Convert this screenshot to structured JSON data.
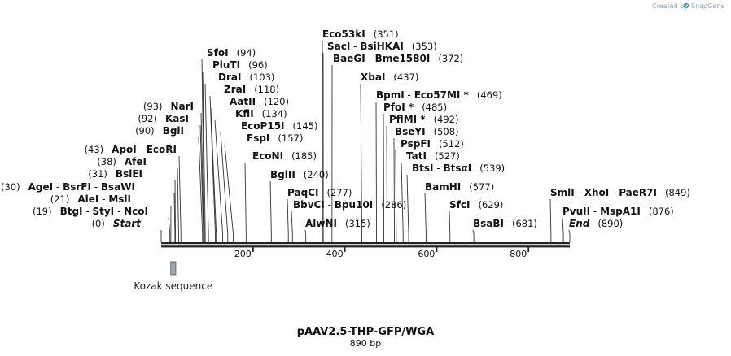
{
  "credit": {
    "prefix": "Created by",
    "brand": "SnapGene"
  },
  "map": {
    "name": "pAAV2.5-THP-GFP/WGA",
    "size_label": "890 bp",
    "length_bp": 890,
    "ticks": [
      {
        "bp": 200,
        "label": "200"
      },
      {
        "bp": 400,
        "label": "400"
      },
      {
        "bp": 600,
        "label": "600"
      },
      {
        "bp": 800,
        "label": "800"
      }
    ],
    "feature": {
      "label": "Kozak sequence",
      "start": 19,
      "end": 30,
      "color": "#a4a8ac"
    },
    "colors": {
      "backbone": "#222222",
      "line": "#333333",
      "accent": "#4a8cc9"
    }
  },
  "chart_data": {
    "type": "restriction-map",
    "title": "pAAV2.5-THP-GFP/WGA",
    "subtitle": "890 bp",
    "sites": [
      {
        "names": [
          "Start"
        ],
        "pos": 0,
        "pos_label": "(0)",
        "side": "left",
        "italic": true
      },
      {
        "names": [
          "BtgI",
          "StyI",
          "NcoI"
        ],
        "pos": 19,
        "pos_label": "(19)",
        "side": "left"
      },
      {
        "names": [
          "AleI",
          "MslI"
        ],
        "pos": 21,
        "pos_label": "(21)",
        "side": "left"
      },
      {
        "names": [
          "AgeI",
          "BsrFI",
          "BsaWI"
        ],
        "pos": 30,
        "pos_label": "(30)",
        "side": "left"
      },
      {
        "names": [
          "BsiEI"
        ],
        "pos": 31,
        "pos_label": "(31)",
        "side": "left"
      },
      {
        "names": [
          "AfeI"
        ],
        "pos": 38,
        "pos_label": "(38)",
        "side": "left"
      },
      {
        "names": [
          "ApoI",
          "EcoRI"
        ],
        "pos": 43,
        "pos_label": "(43)",
        "side": "left"
      },
      {
        "names": [
          "BglI"
        ],
        "pos": 90,
        "pos_label": "(90)",
        "side": "left"
      },
      {
        "names": [
          "KasI"
        ],
        "pos": 92,
        "pos_label": "(92)",
        "side": "left"
      },
      {
        "names": [
          "NarI"
        ],
        "pos": 93,
        "pos_label": "(93)",
        "side": "left"
      },
      {
        "names": [
          "SfoI"
        ],
        "pos": 94,
        "pos_label": "(94)",
        "side": "right"
      },
      {
        "names": [
          "PluTI"
        ],
        "pos": 96,
        "pos_label": "(96)",
        "side": "right"
      },
      {
        "names": [
          "DraI"
        ],
        "pos": 103,
        "pos_label": "(103)",
        "side": "right"
      },
      {
        "names": [
          "ZraI"
        ],
        "pos": 118,
        "pos_label": "(118)",
        "side": "right"
      },
      {
        "names": [
          "AatII"
        ],
        "pos": 120,
        "pos_label": "(120)",
        "side": "right"
      },
      {
        "names": [
          "KflI"
        ],
        "pos": 134,
        "pos_label": "(134)",
        "side": "right"
      },
      {
        "names": [
          "EcoP15I"
        ],
        "pos": 145,
        "pos_label": "(145)",
        "side": "right"
      },
      {
        "names": [
          "FspI"
        ],
        "pos": 157,
        "pos_label": "(157)",
        "side": "right"
      },
      {
        "names": [
          "EcoNI"
        ],
        "pos": 185,
        "pos_label": "(185)",
        "side": "right"
      },
      {
        "names": [
          "BglII"
        ],
        "pos": 240,
        "pos_label": "(240)",
        "side": "right"
      },
      {
        "names": [
          "PaqCI"
        ],
        "pos": 277,
        "pos_label": "(277)",
        "side": "right"
      },
      {
        "names": [
          "BbvCI",
          "Bpu10I"
        ],
        "pos": 286,
        "pos_label": "(286)",
        "side": "right"
      },
      {
        "names": [
          "AlwNI"
        ],
        "pos": 315,
        "pos_label": "(315)",
        "side": "right"
      },
      {
        "names": [
          "Eco53kI"
        ],
        "pos": 351,
        "pos_label": "(351)",
        "side": "right"
      },
      {
        "names": [
          "SacI",
          "BsiHKAI"
        ],
        "pos": 353,
        "pos_label": "(353)",
        "side": "right"
      },
      {
        "names": [
          "BaeGI",
          "Bme1580I"
        ],
        "pos": 372,
        "pos_label": "(372)",
        "side": "right"
      },
      {
        "names": [
          "XbaI"
        ],
        "pos": 437,
        "pos_label": "(437)",
        "side": "right"
      },
      {
        "names": [
          "BpmI",
          "Eco57MI *"
        ],
        "pos": 469,
        "pos_label": "(469)",
        "side": "right"
      },
      {
        "names": [
          "PfoI *"
        ],
        "pos": 485,
        "pos_label": "(485)",
        "side": "right"
      },
      {
        "names": [
          "PflMI *"
        ],
        "pos": 492,
        "pos_label": "(492)",
        "side": "right"
      },
      {
        "names": [
          "BseYI"
        ],
        "pos": 508,
        "pos_label": "(508)",
        "side": "right"
      },
      {
        "names": [
          "PspFI"
        ],
        "pos": 512,
        "pos_label": "(512)",
        "side": "right"
      },
      {
        "names": [
          "TatI"
        ],
        "pos": 527,
        "pos_label": "(527)",
        "side": "right"
      },
      {
        "names": [
          "BtsI",
          "BtsαI"
        ],
        "pos": 539,
        "pos_label": "(539)",
        "side": "right"
      },
      {
        "names": [
          "BamHI"
        ],
        "pos": 577,
        "pos_label": "(577)",
        "side": "right"
      },
      {
        "names": [
          "SfcI"
        ],
        "pos": 629,
        "pos_label": "(629)",
        "side": "right"
      },
      {
        "names": [
          "BsaBI"
        ],
        "pos": 681,
        "pos_label": "(681)",
        "side": "right"
      },
      {
        "names": [
          "SmlI",
          "XhoI",
          "PaeR7I"
        ],
        "pos": 849,
        "pos_label": "(849)",
        "side": "right"
      },
      {
        "names": [
          "PvuII",
          "MspA1I"
        ],
        "pos": 876,
        "pos_label": "(876)",
        "side": "right"
      },
      {
        "names": [
          "End"
        ],
        "pos": 890,
        "pos_label": "(890)",
        "side": "right",
        "italic": true
      }
    ]
  }
}
